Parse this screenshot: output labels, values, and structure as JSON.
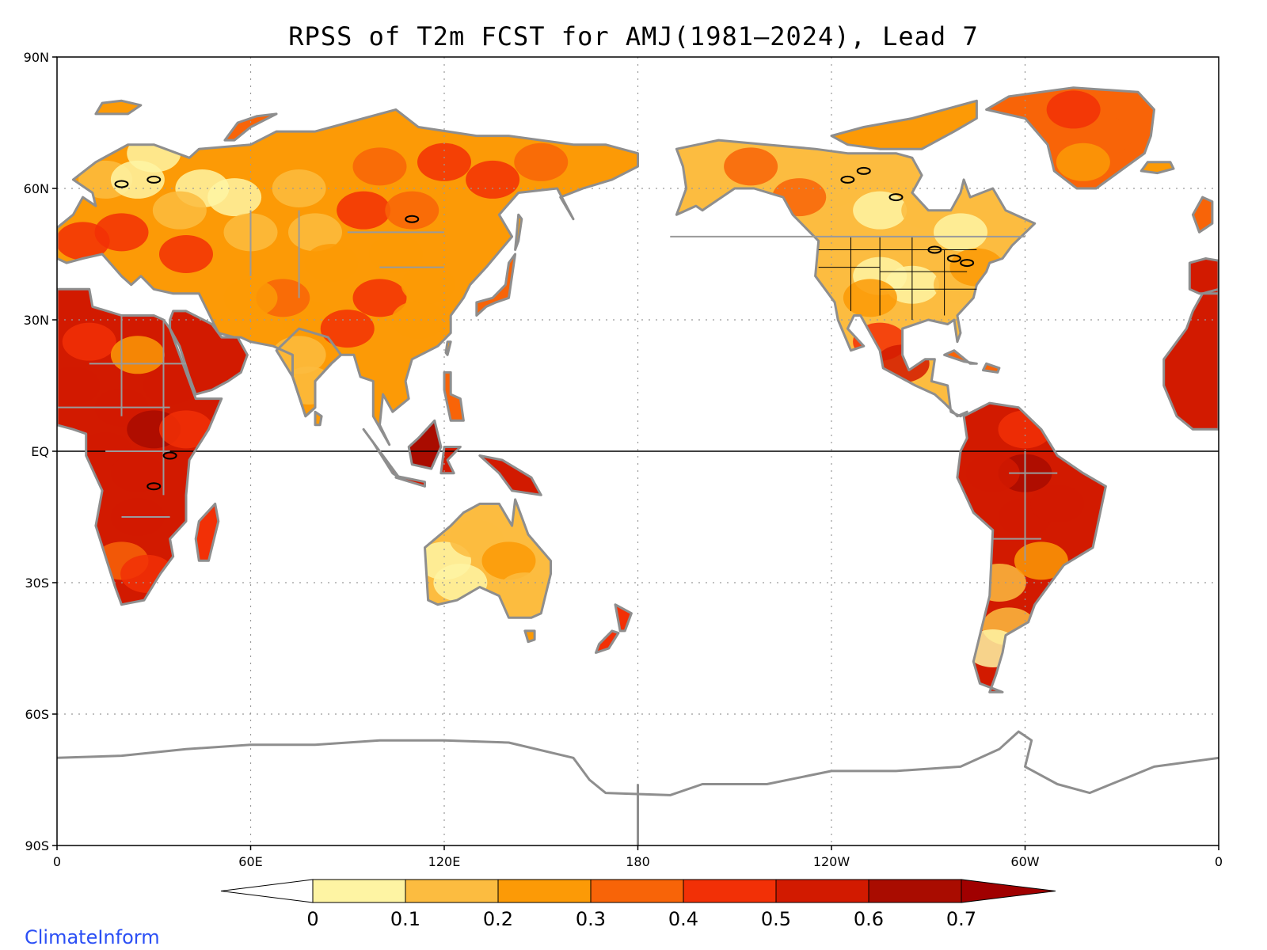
{
  "figure": {
    "title": "RPSS of T2m FCST for AMJ(1981–2024), Lead 7",
    "brand": "ClimateInform"
  },
  "map": {
    "projection": "cylindrical equidistant",
    "lon_range": [
      0,
      360
    ],
    "lat_range": [
      -90,
      90
    ],
    "y_ticks": [
      "90N",
      "60N",
      "30N",
      "EQ",
      "30S",
      "60S",
      "90S"
    ],
    "x_ticks": [
      "0",
      "60E",
      "120E",
      "180",
      "120W",
      "60W",
      "0"
    ],
    "gridlines": "dotted",
    "equator_line": true
  },
  "colorbar": {
    "levels": [
      "0",
      "0.1",
      "0.2",
      "0.3",
      "0.4",
      "0.5",
      "0.6",
      "0.7"
    ],
    "colors": [
      "#ffffff",
      "#fef4a3",
      "#fcbc40",
      "#fc9a06",
      "#f86408",
      "#f23006",
      "#d21a00",
      "#a90c00",
      "#a00000"
    ],
    "extend": "both"
  },
  "chart_data": {
    "type": "heatmap",
    "title": "RPSS of T2m FCST for AMJ(1981–2024), Lead 7",
    "xlabel": "",
    "ylabel": "",
    "variable": "RPSS of 2m temperature forecast",
    "season": "AMJ",
    "years": "1981–2024",
    "lead": 7,
    "value_range": [
      0,
      0.7
    ],
    "regions": [
      {
        "region": "Amazon / Brazil",
        "rpss": 0.65
      },
      {
        "region": "Central Africa",
        "rpss": 0.6
      },
      {
        "region": "Sahel / West Africa",
        "rpss": 0.6
      },
      {
        "region": "Arabian Peninsula",
        "rpss": 0.55
      },
      {
        "region": "Indonesia / Maritime Continent",
        "rpss": 0.6
      },
      {
        "region": "Southern Africa",
        "rpss": 0.45
      },
      {
        "region": "Eastern Siberia",
        "rpss": 0.35
      },
      {
        "region": "Greenland",
        "rpss": 0.35
      },
      {
        "region": "China",
        "rpss": 0.35
      },
      {
        "region": "Mexico / Central America",
        "rpss": 0.45
      },
      {
        "region": "Alaska",
        "rpss": 0.3
      },
      {
        "region": "Western Russia",
        "rpss": 0.1
      },
      {
        "region": "United States / Canada",
        "rpss": 0.1
      },
      {
        "region": "Australia",
        "rpss": 0.1
      },
      {
        "region": "Argentina",
        "rpss": 0.1
      },
      {
        "region": "Oceans / Antarctica",
        "rpss": null
      }
    ]
  }
}
